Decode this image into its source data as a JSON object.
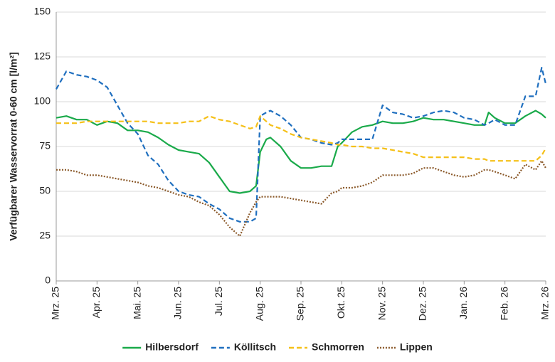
{
  "chart_data": {
    "type": "line",
    "y_label": "Verfügbarer Wasservorrat 0-60 cm [l/m²]",
    "x": [
      0,
      0.25,
      0.5,
      0.75,
      1,
      1.25,
      1.5,
      1.75,
      2,
      2.25,
      2.5,
      2.75,
      3,
      3.25,
      3.5,
      3.75,
      4,
      4.25,
      4.5,
      4.75,
      4.9,
      5,
      5.15,
      5.25,
      5.5,
      5.75,
      6,
      6.25,
      6.5,
      6.75,
      6.9,
      7,
      7.25,
      7.5,
      7.75,
      8,
      8.25,
      8.5,
      8.75,
      9,
      9.25,
      9.5,
      9.75,
      10,
      10.25,
      10.5,
      10.6,
      10.75,
      11,
      11.25,
      11.5,
      11.75,
      11.9,
      12
    ],
    "xlim": [
      0,
      12
    ],
    "xticks": [
      {
        "value": 0,
        "label": "Mrz. 25"
      },
      {
        "value": 1,
        "label": "Apr. 25"
      },
      {
        "value": 2,
        "label": "Mai. 25"
      },
      {
        "value": 3,
        "label": "Jun. 25"
      },
      {
        "value": 4,
        "label": "Jul. 25"
      },
      {
        "value": 5,
        "label": "Aug. 25"
      },
      {
        "value": 6,
        "label": "Sep. 25"
      },
      {
        "value": 7,
        "label": "Okt. 25"
      },
      {
        "value": 8,
        "label": "Nov. 25"
      },
      {
        "value": 9,
        "label": "Dez. 25"
      },
      {
        "value": 10,
        "label": "Jan. 26"
      },
      {
        "value": 11,
        "label": "Feb. 26"
      },
      {
        "value": 12,
        "label": "Mrz. 26"
      }
    ],
    "ylim": [
      0,
      150
    ],
    "yticks": [
      0,
      25,
      50,
      75,
      100,
      125,
      150
    ],
    "grid": true,
    "legend": "bottom",
    "series": [
      {
        "name": "Hilbersdorf",
        "color": "#1aaa4a",
        "style": "solid",
        "values": [
          91,
          92,
          90,
          90,
          87,
          89,
          88,
          84,
          84,
          83,
          80,
          76,
          73,
          72,
          71,
          66,
          58,
          50,
          49,
          50,
          53,
          72,
          79,
          80,
          75,
          67,
          63,
          63,
          64,
          64,
          75,
          77,
          83,
          86,
          87,
          89,
          88,
          88,
          89,
          91,
          90,
          90,
          89,
          88,
          87,
          87,
          94,
          91,
          88,
          88,
          92,
          95,
          93,
          91
        ]
      },
      {
        "name": "Köllitsch",
        "color": "#1f6fbf",
        "style": "dashed",
        "values": [
          107,
          117,
          115,
          114,
          112,
          108,
          98,
          88,
          82,
          70,
          65,
          56,
          50,
          48,
          47,
          43,
          40,
          35,
          33,
          33,
          35,
          92,
          94,
          95,
          92,
          87,
          80,
          79,
          77,
          76,
          77,
          79,
          79,
          79,
          79,
          98,
          94,
          93,
          91,
          92,
          94,
          95,
          94,
          91,
          90,
          87,
          88,
          90,
          87,
          87,
          103,
          103,
          119,
          110
        ]
      },
      {
        "name": "Schmorren",
        "color": "#f5c018",
        "style": "dashed",
        "values": [
          88,
          88,
          88,
          89,
          89,
          89,
          89,
          89,
          89,
          89,
          88,
          88,
          88,
          89,
          89,
          92,
          90,
          89,
          87,
          85,
          86,
          92,
          89,
          87,
          85,
          82,
          80,
          79,
          78,
          77,
          76,
          76,
          75,
          75,
          74,
          74,
          73,
          72,
          71,
          69,
          69,
          69,
          69,
          69,
          68,
          68,
          67,
          67,
          67,
          67,
          67,
          67,
          70,
          74
        ]
      },
      {
        "name": "Lippen",
        "color": "#8b5a2b",
        "style": "dotted",
        "values": [
          62,
          62,
          61,
          59,
          59,
          58,
          57,
          56,
          55,
          53,
          52,
          50,
          48,
          47,
          44,
          42,
          37,
          30,
          25,
          38,
          44,
          47,
          47,
          47,
          47,
          46,
          45,
          44,
          43,
          49,
          50,
          52,
          52,
          53,
          55,
          59,
          59,
          59,
          60,
          63,
          63,
          61,
          59,
          58,
          59,
          62,
          62,
          61,
          59,
          57,
          65,
          62,
          67,
          63
        ]
      }
    ]
  }
}
